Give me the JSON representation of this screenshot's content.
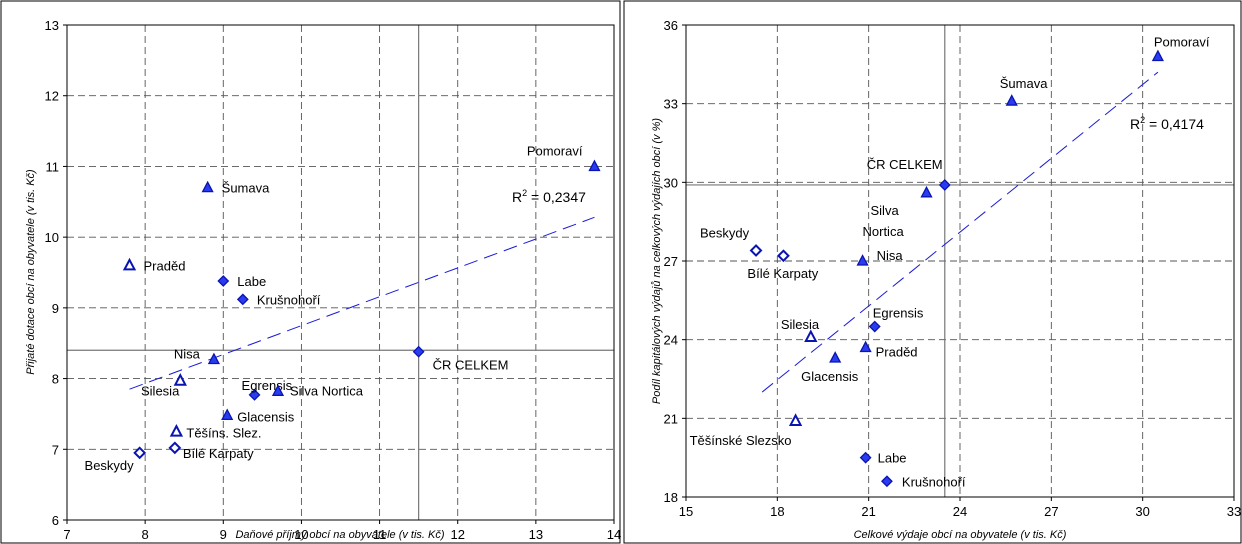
{
  "chart_data": [
    {
      "type": "scatter",
      "xlabel": "Daňové příjmy obcí na obyvatele (v tis. Kč)",
      "ylabel": "Přijaté dotace obcí na obyvatele (v tis. Kč)",
      "xlim": [
        7,
        14
      ],
      "ylim": [
        6,
        13
      ],
      "xticks": [
        "7",
        "8",
        "9",
        "10",
        "11",
        "12",
        "13",
        "14"
      ],
      "yticks": [
        "6",
        "7",
        "8",
        "9",
        "10",
        "11",
        "12",
        "13"
      ],
      "grid": true,
      "reference_lines": {
        "x": 11.5,
        "y": 8.4
      },
      "trendline": {
        "style": "dashed",
        "from": [
          7.8,
          7.85
        ],
        "to": [
          13.75,
          10.28
        ]
      },
      "r2_label": {
        "base": "R",
        "sup": "2",
        "value": " = 0,2347"
      },
      "points": [
        {
          "label": "Pomoraví",
          "x": 13.75,
          "y": 11.0,
          "marker": "triangle"
        },
        {
          "label": "Šumava",
          "x": 8.8,
          "y": 10.7,
          "marker": "triangle"
        },
        {
          "label": "Praděd",
          "x": 7.8,
          "y": 9.6,
          "marker": "triangle-open"
        },
        {
          "label": "Labe",
          "x": 9.0,
          "y": 9.38,
          "marker": "diamond"
        },
        {
          "label": "Krušnohoří",
          "x": 9.25,
          "y": 9.12,
          "marker": "diamond"
        },
        {
          "label": "Nisa",
          "x": 8.88,
          "y": 8.27,
          "marker": "triangle"
        },
        {
          "label": "ČR CELKEM",
          "x": 11.5,
          "y": 8.38,
          "marker": "diamond"
        },
        {
          "label": "Silesia",
          "x": 8.45,
          "y": 7.97,
          "marker": "triangle-open"
        },
        {
          "label": "Egrensis",
          "x": 9.4,
          "y": 7.77,
          "marker": "diamond"
        },
        {
          "label": "Silva Nortica",
          "x": 9.7,
          "y": 7.82,
          "marker": "triangle"
        },
        {
          "label": "Glacensis",
          "x": 9.05,
          "y": 7.48,
          "marker": "triangle"
        },
        {
          "label": "Těšíns. Slez.",
          "x": 8.4,
          "y": 7.25,
          "marker": "triangle-open"
        },
        {
          "label": "Bílé Karpaty",
          "x": 8.38,
          "y": 7.02,
          "marker": "diamond-open"
        },
        {
          "label": "Beskydy",
          "x": 7.93,
          "y": 6.95,
          "marker": "diamond-open"
        }
      ]
    },
    {
      "type": "scatter",
      "xlabel": "Celkové výdaje obcí na obyvatele (v tis. Kč)",
      "ylabel": "Podíl kapitálových výdajů na celkových výdajích obcí (v %)",
      "xlim": [
        15,
        33
      ],
      "ylim": [
        18,
        36
      ],
      "xticks": [
        "15",
        "18",
        "21",
        "24",
        "27",
        "30",
        "33"
      ],
      "yticks": [
        "18",
        "21",
        "24",
        "27",
        "30",
        "33",
        "36"
      ],
      "grid": true,
      "reference_lines": {
        "x": 23.5,
        "y": 29.9
      },
      "trendline": {
        "style": "dashed",
        "from": [
          17.5,
          22.0
        ],
        "to": [
          30.5,
          34.2
        ]
      },
      "r2_label": {
        "base": "R",
        "sup": "2",
        "value": " = 0,4174"
      },
      "points": [
        {
          "label": "Pomoraví",
          "x": 30.5,
          "y": 34.8,
          "marker": "triangle"
        },
        {
          "label": "Šumava",
          "x": 25.7,
          "y": 33.1,
          "marker": "triangle"
        },
        {
          "label": "ČR CELKEM",
          "x": 23.5,
          "y": 29.9,
          "marker": "diamond"
        },
        {
          "label": "Silva Nortica",
          "x": 22.9,
          "y": 29.6,
          "marker": "triangle"
        },
        {
          "label": "Beskydy",
          "x": 17.3,
          "y": 27.4,
          "marker": "diamond-open"
        },
        {
          "label": "Bílé Karpaty",
          "x": 18.2,
          "y": 27.2,
          "marker": "diamond-open"
        },
        {
          "label": "Nisa",
          "x": 20.8,
          "y": 27.0,
          "marker": "triangle"
        },
        {
          "label": "Egrensis",
          "x": 21.2,
          "y": 24.5,
          "marker": "diamond"
        },
        {
          "label": "Silesia",
          "x": 19.1,
          "y": 24.1,
          "marker": "triangle-open"
        },
        {
          "label": "Praděd",
          "x": 20.9,
          "y": 23.7,
          "marker": "triangle"
        },
        {
          "label": "Glacensis",
          "x": 19.9,
          "y": 23.3,
          "marker": "triangle"
        },
        {
          "label": "Těšínské Slezsko",
          "x": 18.6,
          "y": 20.9,
          "marker": "triangle-open"
        },
        {
          "label": "Labe",
          "x": 20.9,
          "y": 19.5,
          "marker": "diamond"
        },
        {
          "label": "Krušnohoří",
          "x": 21.6,
          "y": 18.6,
          "marker": "diamond"
        }
      ]
    }
  ]
}
